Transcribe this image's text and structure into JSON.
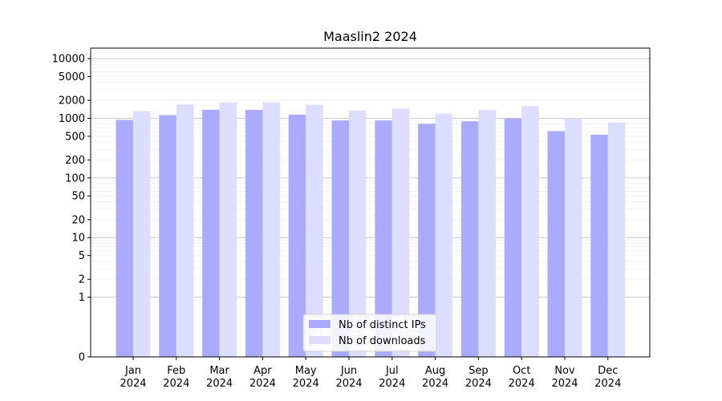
{
  "chart_data": {
    "type": "bar",
    "title": "Maaslin2 2024",
    "xlabel": "",
    "ylabel": "",
    "y_scale": "symlog",
    "ylim": [
      0,
      15000
    ],
    "y_ticks": [
      "0",
      "1",
      "2",
      "5",
      "10",
      "20",
      "50",
      "100",
      "200",
      "500",
      "1000",
      "2000",
      "5000",
      "10000"
    ],
    "y_tick_values": [
      0,
      1,
      2,
      5,
      10,
      20,
      50,
      100,
      200,
      500,
      1000,
      2000,
      5000,
      10000
    ],
    "categories": [
      {
        "month": "Jan",
        "year": "2024"
      },
      {
        "month": "Feb",
        "year": "2024"
      },
      {
        "month": "Mar",
        "year": "2024"
      },
      {
        "month": "Apr",
        "year": "2024"
      },
      {
        "month": "May",
        "year": "2024"
      },
      {
        "month": "Jun",
        "year": "2024"
      },
      {
        "month": "Jul",
        "year": "2024"
      },
      {
        "month": "Aug",
        "year": "2024"
      },
      {
        "month": "Sep",
        "year": "2024"
      },
      {
        "month": "Oct",
        "year": "2024"
      },
      {
        "month": "Nov",
        "year": "2024"
      },
      {
        "month": "Dec",
        "year": "2024"
      }
    ],
    "series": [
      {
        "name": "Nb of distinct IPs",
        "color": "#aaaaff",
        "values": [
          940,
          1130,
          1390,
          1380,
          1150,
          920,
          920,
          810,
          890,
          990,
          610,
          530
        ]
      },
      {
        "name": "Nb of downloads",
        "color": "#ddddff",
        "values": [
          1320,
          1710,
          1850,
          1850,
          1680,
          1350,
          1460,
          1200,
          1380,
          1600,
          1000,
          850
        ]
      }
    ],
    "grid": true,
    "legend_position": "lower-center"
  }
}
